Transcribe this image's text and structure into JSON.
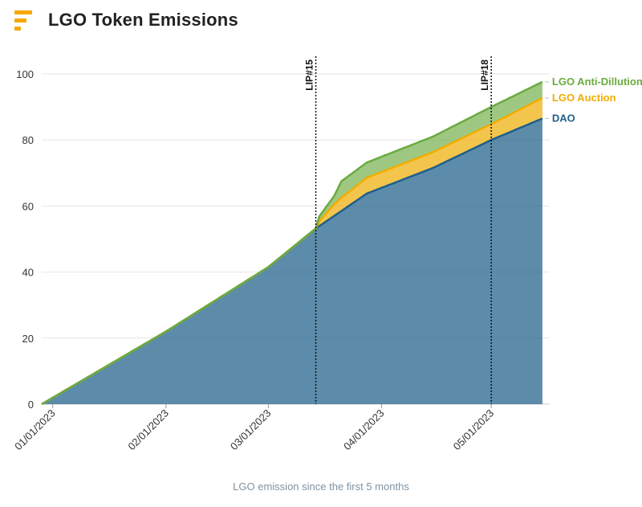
{
  "header": {
    "title": "LGO Token Emissions",
    "logo_icon": "stacked-bars-logo-icon"
  },
  "caption": "LGO emission since the first 5 months",
  "chart_data": {
    "type": "area",
    "stacked": true,
    "title": "LGO Token Emissions",
    "xlabel": "",
    "ylabel": "",
    "x_type": "date",
    "xlim": [
      "2022-12-29",
      "2023-05-17"
    ],
    "ylim": [
      0,
      100
    ],
    "yticks": [
      0,
      20,
      40,
      60,
      80,
      100
    ],
    "xticks": [
      "2023-01-01",
      "2023-02-01",
      "2023-03-01",
      "2023-04-01",
      "2023-05-01"
    ],
    "xtick_labels": [
      "01/01/2023",
      "02/01/2023",
      "03/01/2023",
      "04/01/2023",
      "05/01/2023"
    ],
    "grid": true,
    "legend": "right, inline at line ends",
    "series": [
      {
        "name": "DAO",
        "color": "#1f5f8b",
        "points": [
          [
            "2022-12-29",
            0
          ],
          [
            "2023-02-01",
            22.0
          ],
          [
            "2023-03-01",
            41.5
          ],
          [
            "2023-03-14",
            53.2
          ],
          [
            "2023-03-28",
            63.8
          ],
          [
            "2023-04-15",
            71.5
          ],
          [
            "2023-05-01",
            80.0
          ],
          [
            "2023-05-15",
            86.5
          ]
        ]
      },
      {
        "name": "LGO Auction",
        "color": "#f0ad00",
        "points": [
          [
            "2022-12-29",
            0
          ],
          [
            "2023-03-14",
            0
          ],
          [
            "2023-03-15",
            1.5
          ],
          [
            "2023-03-19",
            3.5
          ],
          [
            "2023-03-21",
            4.0
          ],
          [
            "2023-03-28",
            4.8
          ],
          [
            "2023-04-15",
            4.8
          ],
          [
            "2023-05-01",
            4.8
          ],
          [
            "2023-05-15",
            6.2
          ]
        ]
      },
      {
        "name": "LGO Anti-Dillution",
        "color": "#6aab3f",
        "points": [
          [
            "2022-12-29",
            0
          ],
          [
            "2023-03-14",
            0
          ],
          [
            "2023-03-15",
            1.5
          ],
          [
            "2023-03-19",
            2.5
          ],
          [
            "2023-03-21",
            5.0
          ],
          [
            "2023-03-28",
            4.6
          ],
          [
            "2023-04-15",
            4.7
          ],
          [
            "2023-05-01",
            5.2
          ],
          [
            "2023-05-15",
            4.9
          ]
        ]
      }
    ],
    "labels": [
      "DAO",
      "LGO Auction",
      "LGO Anti-Dillution"
    ],
    "annotations": [
      {
        "label": "LIP#15",
        "x": "2023-03-14"
      },
      {
        "label": "LIP#18",
        "x": "2023-05-01"
      }
    ]
  }
}
